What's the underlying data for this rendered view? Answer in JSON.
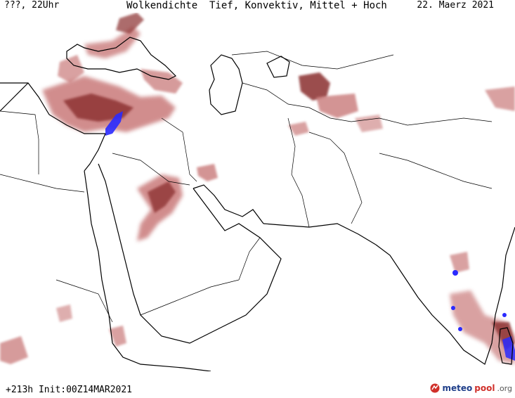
{
  "header": {
    "left": "???, 22Uhr",
    "title": "Wolkendichte  Tief, Konvektiv, Mittel + Hoch",
    "date": "22. Maerz 2021"
  },
  "footer": {
    "run_info": "+213h Init:00Z14MAR2021"
  },
  "logo": {
    "part1": "meteo",
    "part2": "pool",
    "part3": ".org"
  },
  "legend_colors": {
    "cloud_low": "#e8c4c4",
    "cloud_mid": "#c97a7a",
    "cloud_high": "#8a2f2f",
    "convective": "#2a2aff"
  }
}
